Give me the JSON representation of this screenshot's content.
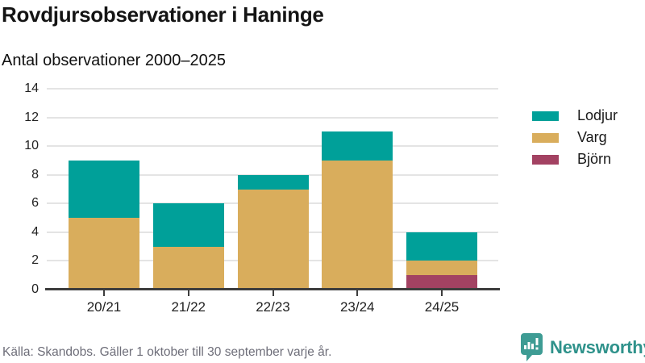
{
  "header": {
    "title": "Rovdjursobservationer i Haninge",
    "subtitle": "Antal observationer 2000–2025"
  },
  "footer": {
    "source": "Källa: Skandobs. Gäller 1 oktober till 30 september varje år."
  },
  "branding": {
    "name": "Newsworthy",
    "icon": "newsworthy-speech-bubble-bar-chart-icon",
    "text_color": "#2f928b",
    "icon_color": "#3e9c94"
  },
  "chart_data": {
    "type": "bar",
    "stacked": true,
    "title": "Rovdjursobservationer i Haninge",
    "subtitle": "Antal observationer 2000–2025",
    "categories": [
      "20/21",
      "21/22",
      "22/23",
      "23/24",
      "24/25"
    ],
    "series": [
      {
        "name": "Lodjur",
        "color": "#00a099",
        "values": [
          4,
          3,
          1,
          2,
          2
        ]
      },
      {
        "name": "Varg",
        "color": "#d9ad5c",
        "values": [
          5,
          3,
          7,
          9,
          1
        ]
      },
      {
        "name": "Björn",
        "color": "#a34262",
        "values": [
          0,
          0,
          0,
          0,
          1
        ]
      }
    ],
    "stack_order_bottom_to_top": [
      "Björn",
      "Varg",
      "Lodjur"
    ],
    "totals": [
      9,
      6,
      8,
      11,
      4
    ],
    "xlabel": "",
    "ylabel": "",
    "ylim": [
      0,
      14
    ],
    "yticks": [
      0,
      2,
      4,
      6,
      8,
      10,
      12,
      14
    ],
    "grid": true,
    "legend_position": "right"
  }
}
